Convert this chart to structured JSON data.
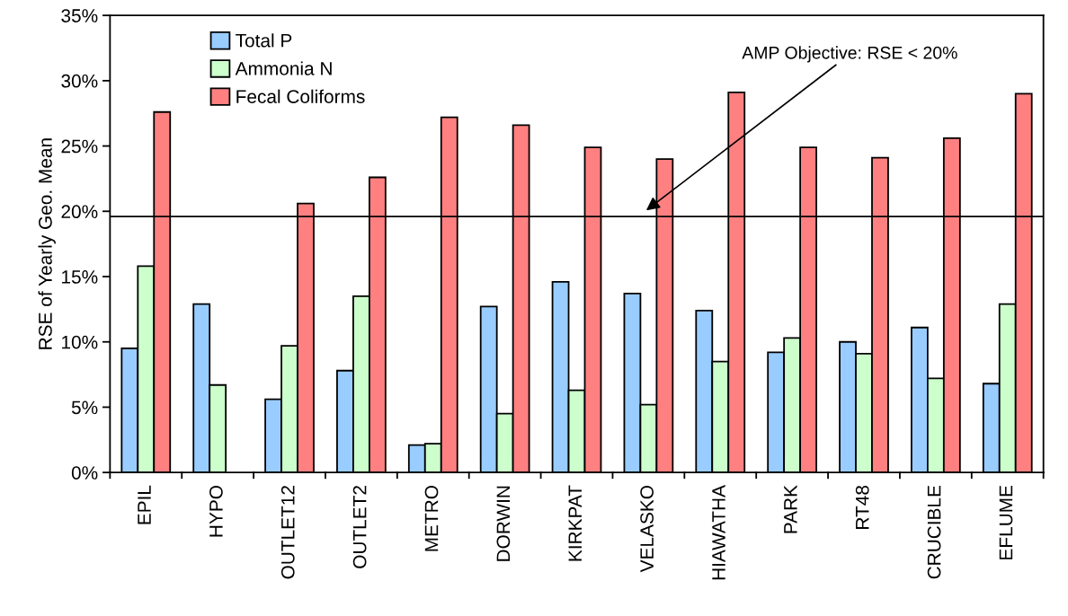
{
  "chart_data": {
    "type": "bar",
    "ylabel": "RSE of Yearly Geo. Mean",
    "categories": [
      "EPIL",
      "HYPO",
      "OUTLET12",
      "OUTLET2",
      "METRO",
      "DORWIN",
      "KIRKPAT",
      "VELASKO",
      "HIAWATHA",
      "PARK",
      "RT48",
      "CRUCIBLE",
      "EFLUME"
    ],
    "series": [
      {
        "name": "Total P",
        "color": "#99ccff",
        "values": [
          9.5,
          12.9,
          5.6,
          7.8,
          2.1,
          12.7,
          14.6,
          13.7,
          12.4,
          9.2,
          10.0,
          11.1,
          6.8
        ]
      },
      {
        "name": "Ammonia N",
        "color": "#ccffcc",
        "values": [
          15.8,
          6.7,
          9.7,
          13.5,
          2.2,
          4.5,
          6.3,
          5.2,
          8.5,
          10.3,
          9.1,
          7.2,
          12.9
        ]
      },
      {
        "name": "Fecal Coliforms",
        "color": "#ff8080",
        "values": [
          27.6,
          null,
          20.6,
          22.6,
          27.2,
          26.6,
          24.9,
          24.0,
          29.1,
          24.9,
          24.1,
          25.6,
          29.0
        ]
      }
    ],
    "ylim": [
      0,
      35
    ],
    "yticks": [
      {
        "value": 0,
        "label": "0%"
      },
      {
        "value": 5,
        "label": "5%"
      },
      {
        "value": 10,
        "label": "10%"
      },
      {
        "value": 15,
        "label": "15%"
      },
      {
        "value": 20,
        "label": "20%"
      },
      {
        "value": 25,
        "label": "25%"
      },
      {
        "value": 30,
        "label": "30%"
      },
      {
        "value": 35,
        "label": "35%"
      }
    ],
    "ref_lines": [
      {
        "axis": "y",
        "value": 19.6,
        "label": "AMP Objective: RSE < 20%",
        "color": "#000000"
      }
    ],
    "grid": false,
    "legend": "top left"
  }
}
